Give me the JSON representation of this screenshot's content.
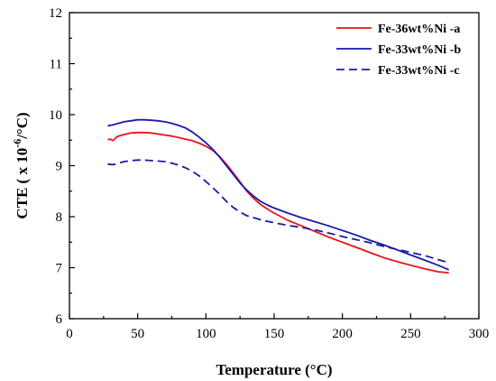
{
  "chart_data": {
    "type": "line",
    "title": "",
    "xlabel": "Temperature (°C)",
    "ylabel_main": "CTE ( x 10",
    "ylabel_exp": "-6",
    "ylabel_tail": "/°C)",
    "xlim": [
      0,
      300
    ],
    "ylim": [
      6,
      12
    ],
    "xticks": [
      0,
      50,
      100,
      150,
      200,
      250,
      300
    ],
    "yticks": [
      6,
      7,
      8,
      9,
      10,
      11,
      12
    ],
    "grid": false,
    "legend_position": "top-right",
    "series": [
      {
        "name": "Fe-36wt%Ni -a",
        "color": "#e8141a",
        "dash": "solid",
        "x": [
          28,
          30,
          32,
          34,
          36,
          40,
          45,
          50,
          55,
          60,
          65,
          70,
          75,
          80,
          85,
          90,
          95,
          100,
          105,
          110,
          115,
          120,
          125,
          130,
          135,
          140,
          145,
          150,
          160,
          170,
          180,
          190,
          200,
          210,
          220,
          230,
          240,
          250,
          260,
          270,
          278
        ],
        "y": [
          9.51,
          9.52,
          9.49,
          9.55,
          9.58,
          9.61,
          9.64,
          9.65,
          9.65,
          9.64,
          9.62,
          9.6,
          9.58,
          9.55,
          9.52,
          9.49,
          9.44,
          9.38,
          9.3,
          9.18,
          9.03,
          8.86,
          8.68,
          8.5,
          8.36,
          8.24,
          8.15,
          8.07,
          7.93,
          7.82,
          7.71,
          7.6,
          7.5,
          7.4,
          7.3,
          7.2,
          7.12,
          7.05,
          6.98,
          6.92,
          6.9
        ]
      },
      {
        "name": "Fe-33wt%Ni -b",
        "color": "#1a1aa8",
        "dash": "solid",
        "x": [
          28,
          32,
          36,
          40,
          45,
          50,
          55,
          60,
          65,
          70,
          75,
          80,
          85,
          90,
          95,
          100,
          105,
          110,
          115,
          120,
          125,
          130,
          135,
          140,
          145,
          150,
          160,
          170,
          180,
          190,
          200,
          210,
          220,
          230,
          240,
          250,
          260,
          270,
          278
        ],
        "y": [
          9.78,
          9.8,
          9.83,
          9.86,
          9.88,
          9.9,
          9.9,
          9.89,
          9.88,
          9.86,
          9.83,
          9.79,
          9.74,
          9.66,
          9.56,
          9.45,
          9.32,
          9.17,
          9.0,
          8.83,
          8.66,
          8.52,
          8.4,
          8.3,
          8.23,
          8.17,
          8.07,
          7.98,
          7.9,
          7.82,
          7.73,
          7.64,
          7.54,
          7.45,
          7.35,
          7.25,
          7.15,
          7.05,
          6.96
        ]
      },
      {
        "name": "Fe-33wt%Ni -c",
        "color": "#1a1aa8",
        "dash": "dashed",
        "x": [
          28,
          32,
          36,
          40,
          45,
          50,
          55,
          60,
          65,
          70,
          75,
          80,
          85,
          90,
          95,
          100,
          105,
          110,
          115,
          120,
          125,
          130,
          135,
          140,
          150,
          160,
          170,
          180,
          190,
          200,
          210,
          220,
          230,
          240,
          250,
          260,
          270,
          278
        ],
        "y": [
          9.03,
          9.02,
          9.05,
          9.08,
          9.1,
          9.11,
          9.11,
          9.1,
          9.09,
          9.08,
          9.05,
          9.01,
          8.96,
          8.89,
          8.8,
          8.69,
          8.57,
          8.44,
          8.3,
          8.18,
          8.09,
          8.02,
          7.98,
          7.94,
          7.88,
          7.83,
          7.79,
          7.74,
          7.68,
          7.61,
          7.55,
          7.49,
          7.42,
          7.36,
          7.3,
          7.24,
          7.16,
          7.1
        ]
      }
    ]
  }
}
